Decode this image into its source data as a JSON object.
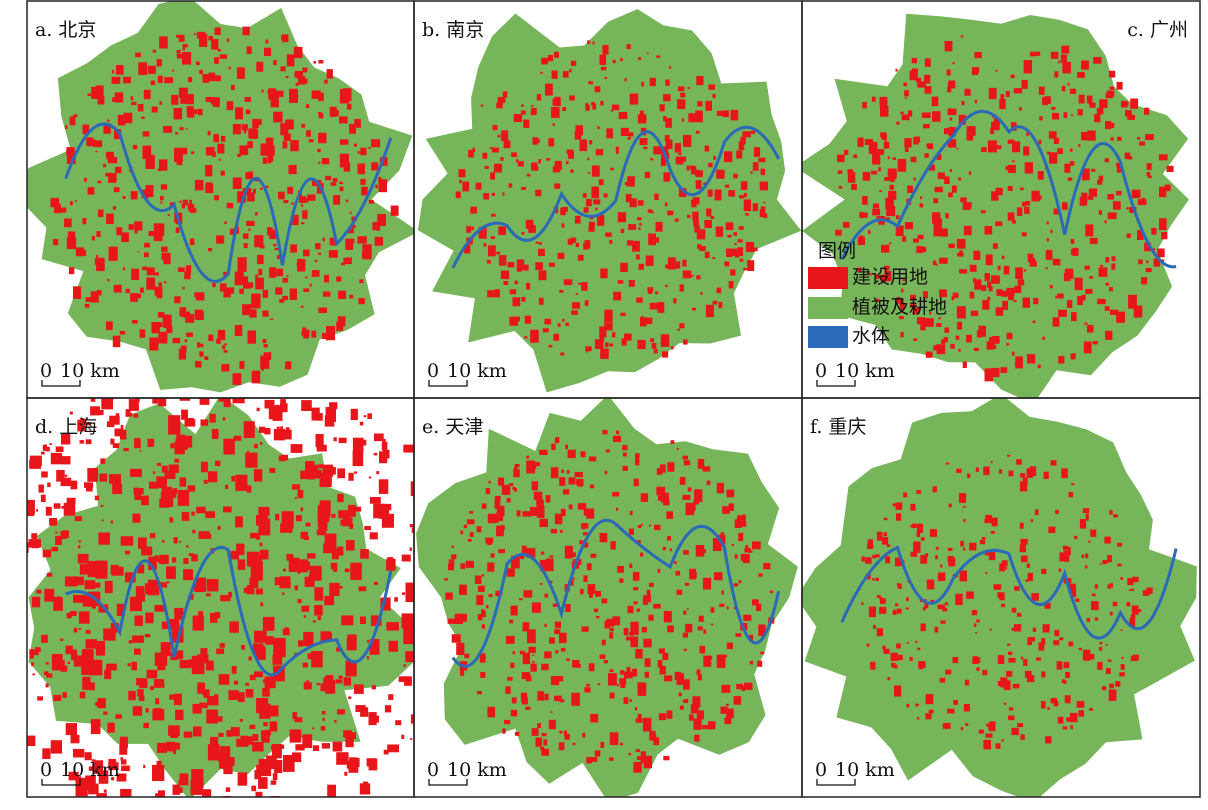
{
  "panels": [
    {
      "label": "a. 北京",
      "scale": {
        "zero": "0",
        "distance": "10 km"
      }
    },
    {
      "label": "b. 南京",
      "scale": {
        "zero": "0",
        "distance": "10 km"
      }
    },
    {
      "label": "c. 广州",
      "scale": {
        "zero": "0",
        "distance": "10 km"
      }
    },
    {
      "label": "d. 上海",
      "scale": {
        "zero": "0",
        "distance": "10 km"
      }
    },
    {
      "label": "e. 天津",
      "scale": {
        "zero": "0",
        "distance": "10 km"
      }
    },
    {
      "label": "f. 重庆",
      "scale": {
        "zero": "0",
        "distance": "10 km"
      }
    }
  ],
  "legend": {
    "title": "图例",
    "items": [
      "建设用地",
      "植被及耕地",
      "水体"
    ]
  }
}
